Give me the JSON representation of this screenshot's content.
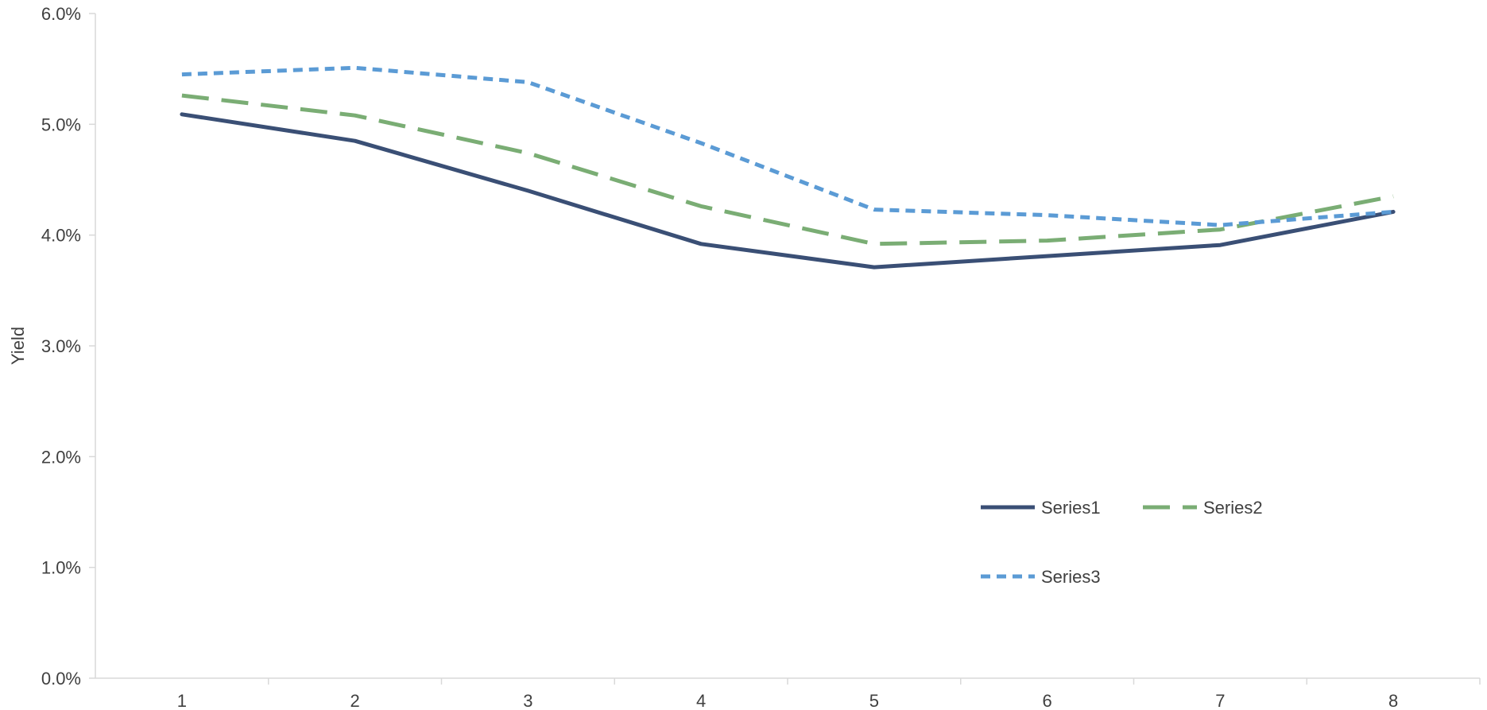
{
  "chart_data": {
    "type": "line",
    "title": "",
    "xlabel": "",
    "ylabel": "Yield",
    "x": [
      1,
      2,
      3,
      4,
      5,
      6,
      7,
      8
    ],
    "xticks": [
      "1",
      "2",
      "3",
      "4",
      "5",
      "6",
      "7",
      "8"
    ],
    "ylim": [
      0,
      0.06
    ],
    "yticks": [
      "0.0%",
      "1.0%",
      "2.0%",
      "3.0%",
      "4.0%",
      "5.0%",
      "6.0%"
    ],
    "ytick_values": [
      0,
      0.01,
      0.02,
      0.03,
      0.04,
      0.05,
      0.06
    ],
    "grid": false,
    "legend_position": "bottom-right inside",
    "series": [
      {
        "name": "Series1",
        "color": "#3a4f75",
        "dash": "solid",
        "values": [
          0.0509,
          0.0485,
          0.044,
          0.0392,
          0.0371,
          0.0381,
          0.0391,
          0.0421
        ]
      },
      {
        "name": "Series2",
        "color": "#7aad74",
        "dash": "long-dash",
        "values": [
          0.0526,
          0.0508,
          0.0474,
          0.0426,
          0.0392,
          0.0395,
          0.0405,
          0.0435
        ]
      },
      {
        "name": "Series3",
        "color": "#5b9bd5",
        "dash": "short-dash",
        "values": [
          0.0545,
          0.0551,
          0.0538,
          0.0483,
          0.0423,
          0.0418,
          0.0409,
          0.0421
        ]
      }
    ]
  }
}
